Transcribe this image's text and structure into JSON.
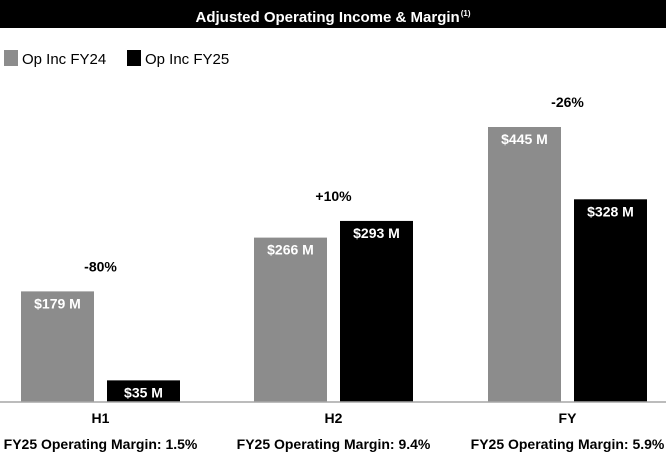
{
  "chart_data": {
    "type": "bar",
    "title": "Adjusted Operating Income & Margin",
    "title_superscript": "(1)",
    "categories": [
      "H1",
      "H2",
      "FY"
    ],
    "series": [
      {
        "name": "Op Inc FY24",
        "values": [
          179,
          266,
          445
        ],
        "labels": [
          "$179 M",
          "$266 M",
          "$445 M"
        ],
        "color": "#8c8c8c"
      },
      {
        "name": "Op Inc FY25",
        "values": [
          35,
          293,
          328
        ],
        "labels": [
          "$35 M",
          "$293 M",
          "$328 M"
        ],
        "color": "#000000"
      }
    ],
    "changes": [
      "-80%",
      "+10%",
      "-26%"
    ],
    "margins": [
      "FY25 Operating Margin: 1.5%",
      "FY25 Operating Margin: 9.4%",
      "FY25 Operating Margin: 5.9%"
    ],
    "ylim": [
      0,
      445
    ],
    "legend_position": "top-left",
    "grid": false
  }
}
